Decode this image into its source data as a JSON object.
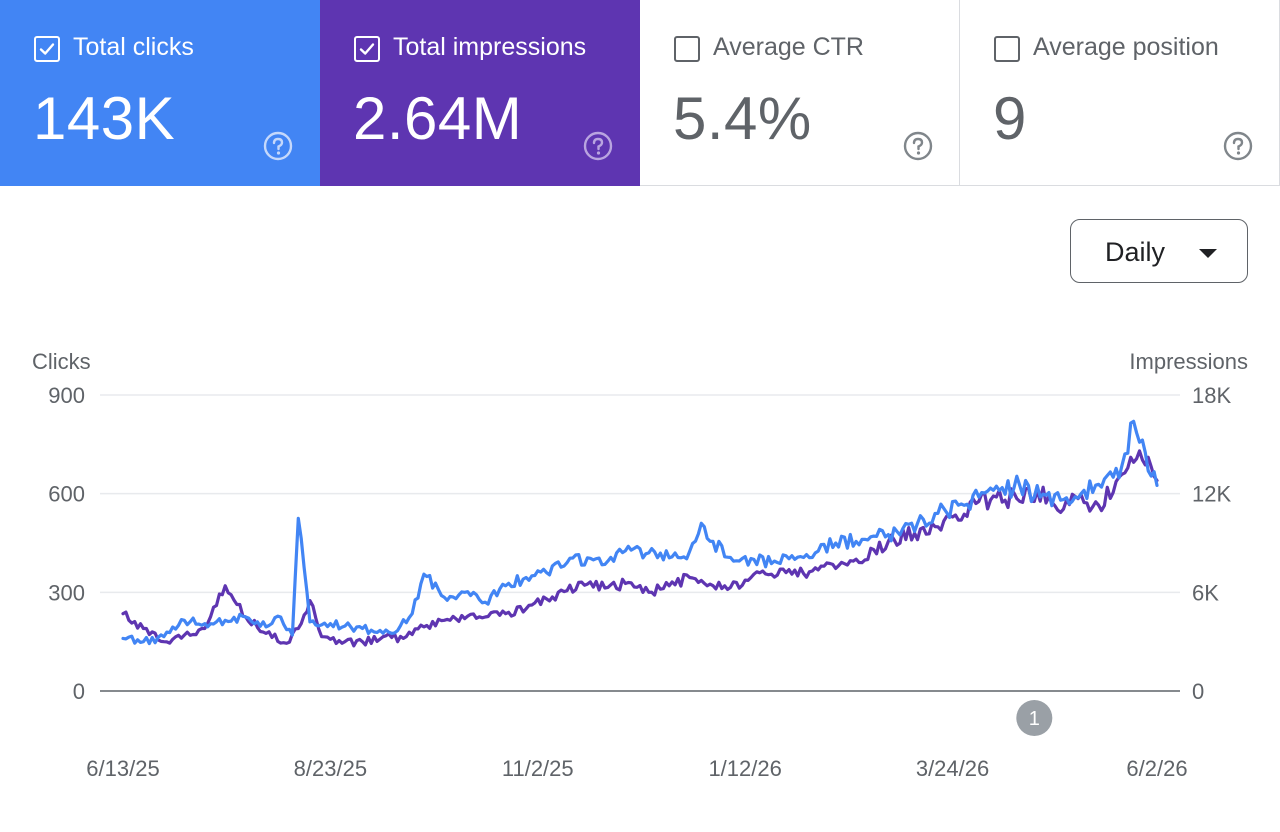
{
  "cards": [
    {
      "id": "clicks",
      "label": "Total clicks",
      "value": "143K",
      "checked": true,
      "color": "#4285f4"
    },
    {
      "id": "impr",
      "label": "Total impressions",
      "value": "2.64M",
      "checked": true,
      "color": "#5e35b1"
    },
    {
      "id": "ctr",
      "label": "Average CTR",
      "value": "5.4%",
      "checked": false
    },
    {
      "id": "pos",
      "label": "Average position",
      "value": "9",
      "checked": false
    }
  ],
  "granularity": {
    "label": "Daily"
  },
  "annotation": {
    "label": "1",
    "date": "4/21/26"
  },
  "chart_data": {
    "type": "line",
    "x_start": "6/13/25",
    "x_end": "6/2/26",
    "x_ticks": [
      "6/13/25",
      "8/23/25",
      "11/2/25",
      "1/12/26",
      "3/24/26",
      "6/2/26"
    ],
    "left_axis": {
      "label": "Clicks",
      "range": [
        0,
        900
      ],
      "ticks": [
        "0",
        "300",
        "600",
        "900"
      ]
    },
    "right_axis": {
      "label": "Impressions",
      "range": [
        0,
        18000
      ],
      "ticks": [
        "0",
        "6K",
        "12K",
        "18K"
      ]
    },
    "grid": true,
    "series": [
      {
        "name": "Total clicks",
        "axis": "left",
        "color": "#4285f4",
        "points": [
          [
            "6/13/25",
            160
          ],
          [
            "6/20/25",
            150
          ],
          [
            "6/27/25",
            165
          ],
          [
            "7/4/25",
            215
          ],
          [
            "7/11/25",
            205
          ],
          [
            "7/18/25",
            215
          ],
          [
            "7/25/25",
            225
          ],
          [
            "8/1/25",
            195
          ],
          [
            "8/6/25",
            225
          ],
          [
            "8/10/25",
            170
          ],
          [
            "8/12/25",
            525
          ],
          [
            "8/16/25",
            210
          ],
          [
            "8/23/25",
            205
          ],
          [
            "8/30/25",
            195
          ],
          [
            "9/6/25",
            185
          ],
          [
            "9/13/25",
            175
          ],
          [
            "9/20/25",
            235
          ],
          [
            "9/24/25",
            355
          ],
          [
            "10/1/25",
            285
          ],
          [
            "10/8/25",
            300
          ],
          [
            "10/15/25",
            270
          ],
          [
            "10/22/25",
            320
          ],
          [
            "10/29/25",
            345
          ],
          [
            "11/5/25",
            360
          ],
          [
            "11/12/25",
            390
          ],
          [
            "11/19/25",
            405
          ],
          [
            "11/26/25",
            395
          ],
          [
            "12/3/25",
            440
          ],
          [
            "12/10/25",
            420
          ],
          [
            "12/17/25",
            405
          ],
          [
            "12/24/25",
            425
          ],
          [
            "12/28/25",
            510
          ],
          [
            "1/1/26",
            455
          ],
          [
            "1/8/26",
            395
          ],
          [
            "1/15/26",
            400
          ],
          [
            "1/22/26",
            395
          ],
          [
            "1/29/26",
            400
          ],
          [
            "2/5/26",
            420
          ],
          [
            "2/12/26",
            450
          ],
          [
            "2/19/26",
            455
          ],
          [
            "2/26/26",
            470
          ],
          [
            "3/5/26",
            485
          ],
          [
            "3/12/26",
            510
          ],
          [
            "3/19/26",
            540
          ],
          [
            "3/26/26",
            565
          ],
          [
            "4/2/26",
            590
          ],
          [
            "4/9/26",
            610
          ],
          [
            "4/16/26",
            625
          ],
          [
            "4/23/26",
            590
          ],
          [
            "4/30/26",
            580
          ],
          [
            "5/7/26",
            600
          ],
          [
            "5/14/26",
            620
          ],
          [
            "5/21/26",
            685
          ],
          [
            "5/25/26",
            820
          ],
          [
            "5/29/26",
            725
          ],
          [
            "6/2/26",
            625
          ]
        ]
      },
      {
        "name": "Total impressions",
        "axis": "right",
        "color": "#5e35b1",
        "points": [
          [
            "6/13/25",
            4700
          ],
          [
            "6/20/25",
            3800
          ],
          [
            "6/27/25",
            3000
          ],
          [
            "7/4/25",
            3400
          ],
          [
            "7/11/25",
            3800
          ],
          [
            "7/18/25",
            6400
          ],
          [
            "7/25/25",
            4500
          ],
          [
            "8/1/25",
            3500
          ],
          [
            "8/8/25",
            2900
          ],
          [
            "8/12/25",
            3800
          ],
          [
            "8/16/25",
            5500
          ],
          [
            "8/20/25",
            3300
          ],
          [
            "8/27/25",
            2900
          ],
          [
            "9/3/25",
            3000
          ],
          [
            "9/10/25",
            3300
          ],
          [
            "9/17/25",
            3200
          ],
          [
            "9/24/25",
            3900
          ],
          [
            "10/1/25",
            4300
          ],
          [
            "10/8/25",
            4400
          ],
          [
            "10/15/25",
            4500
          ],
          [
            "10/22/25",
            4700
          ],
          [
            "10/29/25",
            5000
          ],
          [
            "11/5/25",
            5600
          ],
          [
            "11/12/25",
            6100
          ],
          [
            "11/19/25",
            6500
          ],
          [
            "11/26/25",
            6300
          ],
          [
            "12/3/25",
            6600
          ],
          [
            "12/10/25",
            6000
          ],
          [
            "12/17/25",
            6400
          ],
          [
            "12/24/25",
            6900
          ],
          [
            "12/31/25",
            6500
          ],
          [
            "1/7/26",
            6300
          ],
          [
            "1/14/26",
            6900
          ],
          [
            "1/21/26",
            7100
          ],
          [
            "1/28/26",
            7100
          ],
          [
            "2/4/26",
            7300
          ],
          [
            "2/11/26",
            7700
          ],
          [
            "2/18/26",
            7900
          ],
          [
            "2/25/26",
            8600
          ],
          [
            "3/4/26",
            9200
          ],
          [
            "3/11/26",
            9600
          ],
          [
            "3/18/26",
            10000
          ],
          [
            "3/25/26",
            10700
          ],
          [
            "4/1/26",
            11400
          ],
          [
            "4/8/26",
            11800
          ],
          [
            "4/15/26",
            11700
          ],
          [
            "4/22/26",
            12200
          ],
          [
            "4/29/26",
            11000
          ],
          [
            "5/6/26",
            11700
          ],
          [
            "5/13/26",
            11300
          ],
          [
            "5/20/26",
            13000
          ],
          [
            "5/27/26",
            14600
          ],
          [
            "6/2/26",
            12800
          ]
        ]
      }
    ]
  }
}
